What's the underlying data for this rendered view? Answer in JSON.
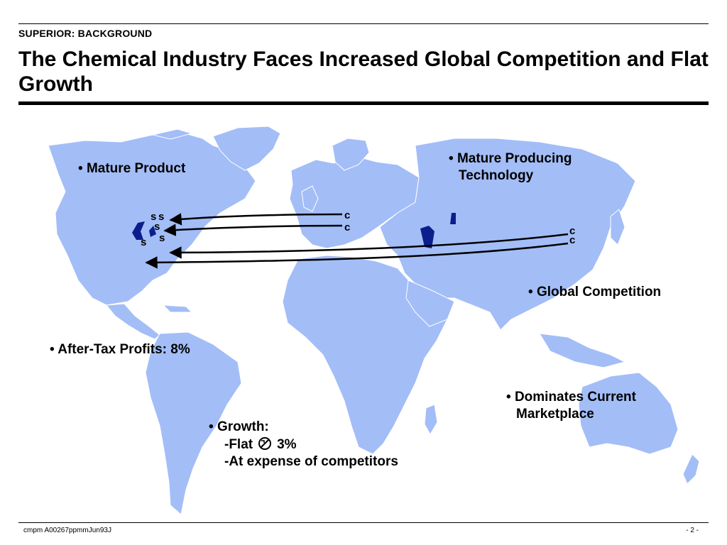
{
  "header": {
    "section_label": "SUPERIOR:  BACKGROUND",
    "title": "The Chemical Industry Faces Increased Global Competition and Flat Growth"
  },
  "map": {
    "us_markers": [
      "s",
      "s",
      "s",
      "s",
      "s"
    ],
    "competitor_markers": [
      "c",
      "c",
      "c",
      "c"
    ]
  },
  "bullets": {
    "mature_product": "Mature Product",
    "mature_producing": [
      "Mature Producing",
      "Technology"
    ],
    "global_competition": "Global Competition",
    "after_tax": "After-Tax Profits:  8%",
    "dominates": [
      "Dominates Current",
      "Marketplace"
    ],
    "growth": {
      "label": "Growth:",
      "flat": "Flat",
      "flat_value": "3%",
      "expense": "At expense of competitors"
    }
  },
  "footer": {
    "left": "cmpm A00267ppmmJun93J",
    "right": "- 2 -"
  },
  "colors": {
    "land": "#a3bdf7",
    "marker": "#0b1f8c"
  }
}
